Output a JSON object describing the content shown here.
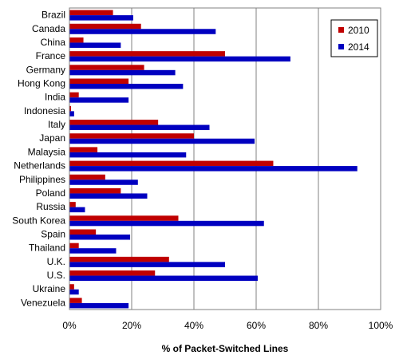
{
  "chart_data": {
    "type": "bar",
    "orientation": "horizontal",
    "title": "",
    "xlabel": "% of Packet-Switched  Lines",
    "ylabel": "",
    "xlim": [
      0,
      100
    ],
    "x_ticks": [
      "0%",
      "20%",
      "40%",
      "60%",
      "80%",
      "100%"
    ],
    "grid": "vertical",
    "legend_position": "top-right",
    "categories": [
      "Brazil",
      "Canada",
      "China",
      "France",
      "Germany",
      "Hong Kong",
      "India",
      "Indonesia",
      "Italy",
      "Japan",
      "Malaysia",
      "Netherlands",
      "Philippines",
      "Poland",
      "Russia",
      "South Korea",
      "Spain",
      "Thailand",
      "U.K.",
      "U.S.",
      "Ukraine",
      "Venezuela"
    ],
    "series": [
      {
        "name": "2010",
        "color": "#C00000",
        "values": [
          14,
          23,
          4.5,
          50,
          24,
          19,
          3,
          0.5,
          28.5,
          40,
          9,
          65.5,
          11.5,
          16.5,
          2,
          35,
          8.5,
          3,
          32,
          27.5,
          1.5,
          4
        ]
      },
      {
        "name": "2014",
        "color": "#0000C0",
        "values": [
          20.5,
          47,
          16.5,
          71,
          34,
          36.5,
          19,
          1.5,
          45,
          59.5,
          37.5,
          92.5,
          22,
          25,
          5,
          62.5,
          19.5,
          15,
          50,
          60.5,
          3,
          19
        ]
      }
    ]
  }
}
